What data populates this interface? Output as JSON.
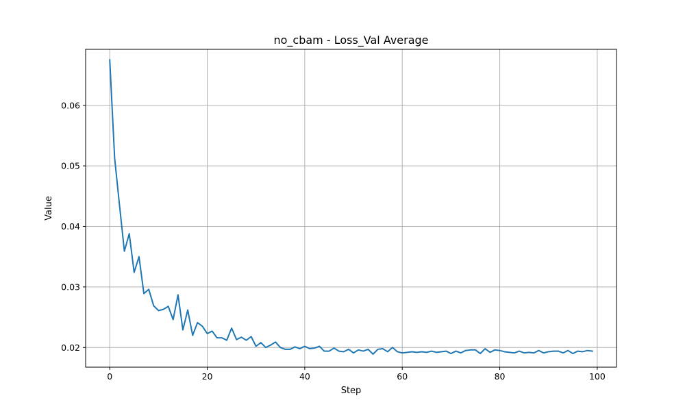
{
  "chart_data": {
    "type": "line",
    "title": "no_cbam - Loss_Val Average",
    "xlabel": "Step",
    "ylabel": "Value",
    "xlim": [
      -4.95,
      103.95
    ],
    "ylim": [
      0.01675,
      0.06925
    ],
    "xticks": [
      0,
      20,
      40,
      60,
      80,
      100
    ],
    "yticks": [
      0.02,
      0.03,
      0.04,
      0.05,
      0.06
    ],
    "xtick_labels": [
      "0",
      "20",
      "40",
      "60",
      "80",
      "100"
    ],
    "ytick_labels": [
      "0.02",
      "0.03",
      "0.04",
      "0.05",
      "0.06"
    ],
    "grid": true,
    "series": [
      {
        "color": "#1f77b4",
        "x": [
          0,
          1,
          2,
          3,
          4,
          5,
          6,
          7,
          8,
          9,
          10,
          11,
          12,
          13,
          14,
          15,
          16,
          17,
          18,
          19,
          20,
          21,
          22,
          23,
          24,
          25,
          26,
          27,
          28,
          29,
          30,
          31,
          32,
          33,
          34,
          35,
          36,
          37,
          38,
          39,
          40,
          41,
          42,
          43,
          44,
          45,
          46,
          47,
          48,
          49,
          50,
          51,
          52,
          53,
          54,
          55,
          56,
          57,
          58,
          59,
          60,
          61,
          62,
          63,
          64,
          65,
          66,
          67,
          68,
          69,
          70,
          71,
          72,
          73,
          74,
          75,
          76,
          77,
          78,
          79,
          80,
          81,
          82,
          83,
          84,
          85,
          86,
          87,
          88,
          89,
          90,
          91,
          92,
          93,
          94,
          95,
          96,
          97,
          98,
          99
        ],
        "values": [
          0.0675,
          0.0513,
          0.0435,
          0.0359,
          0.0388,
          0.0324,
          0.035,
          0.0289,
          0.0296,
          0.0269,
          0.0261,
          0.0263,
          0.0268,
          0.0246,
          0.0287,
          0.0229,
          0.0262,
          0.022,
          0.0241,
          0.0235,
          0.0223,
          0.0227,
          0.0216,
          0.0216,
          0.0212,
          0.0232,
          0.0213,
          0.0217,
          0.0212,
          0.0218,
          0.0202,
          0.0208,
          0.02,
          0.0204,
          0.0209,
          0.02,
          0.0197,
          0.0197,
          0.0201,
          0.0198,
          0.0202,
          0.0198,
          0.0199,
          0.0202,
          0.0194,
          0.0194,
          0.0199,
          0.0194,
          0.0193,
          0.0197,
          0.0191,
          0.0196,
          0.0194,
          0.0197,
          0.0189,
          0.0197,
          0.0198,
          0.0193,
          0.02,
          0.0193,
          0.0191,
          0.0192,
          0.0193,
          0.0192,
          0.0193,
          0.0192,
          0.0194,
          0.0192,
          0.0193,
          0.0194,
          0.019,
          0.0194,
          0.0191,
          0.0195,
          0.0196,
          0.0196,
          0.019,
          0.0198,
          0.0192,
          0.0196,
          0.0195,
          0.0193,
          0.0192,
          0.0191,
          0.0194,
          0.0191,
          0.0192,
          0.0191,
          0.0195,
          0.0191,
          0.0193,
          0.0194,
          0.0194,
          0.0191,
          0.0195,
          0.019,
          0.0194,
          0.0193,
          0.0195,
          0.0194
        ]
      }
    ]
  }
}
